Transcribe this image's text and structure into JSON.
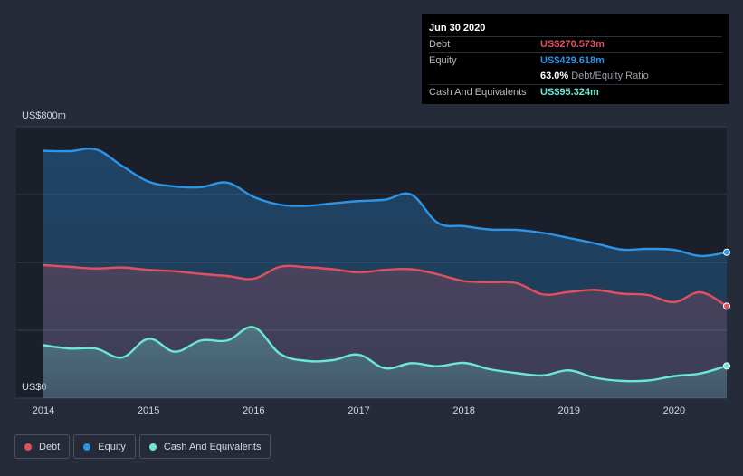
{
  "tooltip": {
    "date": "Jun 30 2020",
    "debt_label": "Debt",
    "debt_value": "US$270.573m",
    "equity_label": "Equity",
    "equity_value": "US$429.618m",
    "ratio_value": "63.0%",
    "ratio_label": "Debt/Equity Ratio",
    "cash_label": "Cash And Equivalents",
    "cash_value": "US$95.324m"
  },
  "legend": {
    "debt": "Debt",
    "equity": "Equity",
    "cash": "Cash And Equivalents"
  },
  "colors": {
    "debt": "#e2505f",
    "equity": "#2d94e6",
    "cash": "#6ce7d6",
    "background": "#252b38",
    "plot_background": "#1a1f2a"
  },
  "chart_data": {
    "type": "area",
    "title": "",
    "xlabel": "",
    "ylabel": "",
    "y_top_label": "US$800m",
    "y_bottom_label": "US$0",
    "ylim": [
      0,
      800
    ],
    "xlim": [
      2014.0,
      2020.5
    ],
    "x_ticks": [
      2014,
      2015,
      2016,
      2017,
      2018,
      2019,
      2020
    ],
    "x_tick_labels": [
      "2014",
      "2015",
      "2016",
      "2017",
      "2018",
      "2019",
      "2020"
    ],
    "y_gridlines": [
      0,
      200,
      400,
      600,
      800
    ],
    "series": [
      {
        "name": "Equity",
        "key": "equity",
        "x": [
          2014.0,
          2014.25,
          2014.5,
          2014.75,
          2015.0,
          2015.25,
          2015.5,
          2015.75,
          2016.0,
          2016.25,
          2016.5,
          2016.75,
          2017.0,
          2017.25,
          2017.5,
          2017.75,
          2018.0,
          2018.25,
          2018.5,
          2018.75,
          2019.0,
          2019.25,
          2019.5,
          2019.75,
          2020.0,
          2020.25,
          2020.5
        ],
        "values": [
          729,
          728,
          733,
          684,
          638,
          624,
          622,
          635,
          593,
          570,
          567,
          574,
          581,
          585,
          600,
          517,
          507,
          497,
          496,
          487,
          472,
          456,
          438,
          440,
          437,
          419,
          430
        ]
      },
      {
        "name": "Debt",
        "key": "debt",
        "x": [
          2014.0,
          2014.25,
          2014.5,
          2014.75,
          2015.0,
          2015.25,
          2015.5,
          2015.75,
          2016.0,
          2016.25,
          2016.5,
          2016.75,
          2017.0,
          2017.25,
          2017.5,
          2017.75,
          2018.0,
          2018.25,
          2018.5,
          2018.75,
          2019.0,
          2019.25,
          2019.5,
          2019.75,
          2020.0,
          2020.25,
          2020.5
        ],
        "values": [
          392,
          387,
          382,
          385,
          378,
          374,
          366,
          360,
          352,
          387,
          386,
          380,
          371,
          378,
          380,
          365,
          345,
          342,
          339,
          306,
          313,
          319,
          308,
          304,
          283,
          312,
          271
        ]
      },
      {
        "name": "Cash And Equivalents",
        "key": "cash",
        "x": [
          2014.0,
          2014.25,
          2014.5,
          2014.75,
          2015.0,
          2015.25,
          2015.5,
          2015.75,
          2016.0,
          2016.25,
          2016.5,
          2016.75,
          2017.0,
          2017.25,
          2017.5,
          2017.75,
          2018.0,
          2018.25,
          2018.5,
          2018.75,
          2019.0,
          2019.25,
          2019.5,
          2019.75,
          2020.0,
          2020.25,
          2020.5
        ],
        "values": [
          156,
          146,
          146,
          120,
          175,
          137,
          170,
          170,
          209,
          131,
          110,
          112,
          128,
          88,
          103,
          94,
          104,
          85,
          74,
          67,
          82,
          60,
          51,
          52,
          65,
          73,
          95
        ]
      }
    ]
  }
}
